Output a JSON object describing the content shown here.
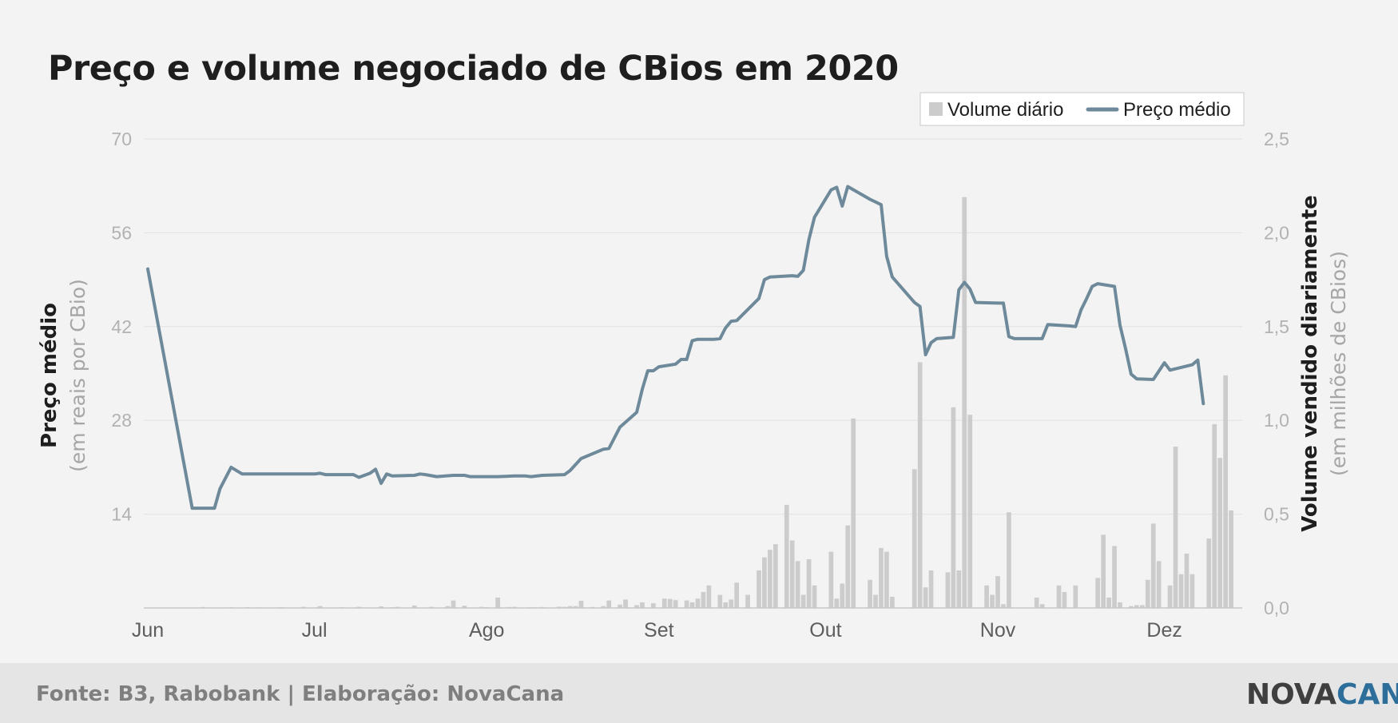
{
  "chart_data": {
    "type": "bar+line",
    "title": "Preço e volume negociado de CBios em 2020",
    "y_left": {
      "label": "Preço médio",
      "sublabel": "(em reais por CBio)",
      "ticks": [
        "70",
        "56",
        "42",
        "28",
        "14"
      ],
      "range": [
        0,
        70
      ]
    },
    "y_right": {
      "label": "Volume vendido diariamente",
      "sublabel": "(em milhões de CBios)",
      "ticks": [
        "2,5",
        "2,0",
        "1,5",
        "1,0",
        "0,5",
        "0,0"
      ],
      "range": [
        0,
        2.5
      ]
    },
    "x_axis": {
      "ticks": [
        "Jun",
        "Jul",
        "Ago",
        "Set",
        "Out",
        "Nov",
        "Dez"
      ],
      "range_days": [
        0,
        197
      ]
    },
    "legend": {
      "placement": "top-right",
      "items": [
        {
          "label": "Volume diário",
          "type": "bar"
        },
        {
          "label": "Preço médio",
          "type": "line"
        }
      ]
    },
    "series": [
      {
        "name": "Volume diário",
        "type": "bar",
        "axis": "right",
        "values": [
          [
            10,
            0.005
          ],
          [
            15,
            0.004
          ],
          [
            18,
            0.004
          ],
          [
            20,
            0.003
          ],
          [
            24,
            0.004
          ],
          [
            28,
            0.006
          ],
          [
            31,
            0.01
          ],
          [
            35,
            0.004
          ],
          [
            38,
            0.006
          ],
          [
            39,
            0.003
          ],
          [
            42,
            0.008
          ],
          [
            44,
            0.004
          ],
          [
            45,
            0.006
          ],
          [
            48,
            0.013
          ],
          [
            51,
            0.006
          ],
          [
            54,
            0.01
          ],
          [
            55,
            0.04
          ],
          [
            57,
            0.012
          ],
          [
            60,
            0.006
          ],
          [
            61,
            0.004
          ],
          [
            63,
            0.055
          ],
          [
            65,
            0.005
          ],
          [
            66,
            0.006
          ],
          [
            69,
            0.004
          ],
          [
            70,
            0.003
          ],
          [
            71,
            0.005
          ],
          [
            74,
            0.007
          ],
          [
            75,
            0.006
          ],
          [
            76,
            0.01
          ],
          [
            77,
            0.01
          ],
          [
            78,
            0.038
          ],
          [
            80,
            0.005
          ],
          [
            82,
            0.01
          ],
          [
            83,
            0.04
          ],
          [
            85,
            0.018
          ],
          [
            86,
            0.045
          ],
          [
            88,
            0.015
          ],
          [
            89,
            0.03
          ],
          [
            91,
            0.025
          ],
          [
            93,
            0.05
          ],
          [
            94,
            0.048
          ],
          [
            95,
            0.042
          ],
          [
            97,
            0.04
          ],
          [
            98,
            0.03
          ],
          [
            99,
            0.05
          ],
          [
            100,
            0.085
          ],
          [
            101,
            0.12
          ],
          [
            103,
            0.07
          ],
          [
            104,
            0.03
          ],
          [
            105,
            0.045
          ],
          [
            106,
            0.135
          ],
          [
            108,
            0.07
          ],
          [
            110,
            0.2
          ],
          [
            111,
            0.27
          ],
          [
            112,
            0.31
          ],
          [
            113,
            0.34
          ],
          [
            115,
            0.55
          ],
          [
            116,
            0.36
          ],
          [
            117,
            0.25
          ],
          [
            118,
            0.07
          ],
          [
            119,
            0.26
          ],
          [
            120,
            0.12
          ],
          [
            123,
            0.3
          ],
          [
            124,
            0.05
          ],
          [
            125,
            0.13
          ],
          [
            126,
            0.44
          ],
          [
            127,
            1.01
          ],
          [
            130,
            0.15
          ],
          [
            131,
            0.07
          ],
          [
            132,
            0.32
          ],
          [
            133,
            0.3
          ],
          [
            134,
            0.06
          ],
          [
            138,
            0.74
          ],
          [
            139,
            1.31
          ],
          [
            140,
            0.11
          ],
          [
            141,
            0.2
          ],
          [
            144,
            0.19
          ],
          [
            145,
            1.07
          ],
          [
            146,
            0.2
          ],
          [
            147,
            2.19
          ],
          [
            148,
            1.03
          ],
          [
            151,
            0.12
          ],
          [
            152,
            0.07
          ],
          [
            153,
            0.17
          ],
          [
            154,
            0.02
          ],
          [
            155,
            0.51
          ],
          [
            160,
            0.055
          ],
          [
            161,
            0.02
          ],
          [
            164,
            0.12
          ],
          [
            165,
            0.085
          ],
          [
            167,
            0.12
          ],
          [
            171,
            0.16
          ],
          [
            172,
            0.39
          ],
          [
            173,
            0.055
          ],
          [
            174,
            0.33
          ],
          [
            175,
            0.03
          ],
          [
            177,
            0.01
          ],
          [
            178,
            0.015
          ],
          [
            179,
            0.015
          ],
          [
            180,
            0.15
          ],
          [
            181,
            0.45
          ],
          [
            182,
            0.25
          ],
          [
            184,
            0.12
          ],
          [
            185,
            0.86
          ],
          [
            186,
            0.18
          ],
          [
            187,
            0.29
          ],
          [
            188,
            0.18
          ],
          [
            191,
            0.37
          ],
          [
            192,
            0.98
          ],
          [
            193,
            0.8
          ],
          [
            194,
            1.24
          ],
          [
            195,
            0.52
          ]
        ]
      },
      {
        "name": "Preço médio",
        "type": "line",
        "axis": "left",
        "points": [
          [
            0,
            50.6
          ],
          [
            8,
            14.9
          ],
          [
            12,
            14.9
          ],
          [
            13,
            17.8
          ],
          [
            15,
            21.0
          ],
          [
            17,
            20.0
          ],
          [
            30,
            20.0
          ],
          [
            31,
            20.1
          ],
          [
            32,
            19.9
          ],
          [
            37,
            19.9
          ],
          [
            38,
            19.5
          ],
          [
            40,
            20.1
          ],
          [
            41,
            20.7
          ],
          [
            42,
            18.6
          ],
          [
            43,
            20.0
          ],
          [
            44,
            19.7
          ],
          [
            48,
            19.8
          ],
          [
            49,
            20.0
          ],
          [
            50,
            19.9
          ],
          [
            52,
            19.6
          ],
          [
            55,
            19.8
          ],
          [
            57,
            19.8
          ],
          [
            58,
            19.6
          ],
          [
            63,
            19.6
          ],
          [
            66,
            19.7
          ],
          [
            68,
            19.7
          ],
          [
            69,
            19.6
          ],
          [
            71,
            19.8
          ],
          [
            75,
            19.9
          ],
          [
            76,
            20.5
          ],
          [
            78,
            22.3
          ],
          [
            82,
            23.7
          ],
          [
            83,
            23.8
          ],
          [
            85,
            27.0
          ],
          [
            88,
            29.2
          ],
          [
            89,
            32.6
          ],
          [
            90,
            35.4
          ],
          [
            91,
            35.4
          ],
          [
            92,
            36.0
          ],
          [
            95,
            36.4
          ],
          [
            96,
            37.1
          ],
          [
            97,
            37.1
          ],
          [
            98,
            39.9
          ],
          [
            99,
            40.1
          ],
          [
            102,
            40.1
          ],
          [
            103,
            40.2
          ],
          [
            104,
            41.8
          ],
          [
            105,
            42.8
          ],
          [
            106,
            42.9
          ],
          [
            110,
            46.2
          ],
          [
            111,
            49.0
          ],
          [
            112,
            49.4
          ],
          [
            116,
            49.6
          ],
          [
            117,
            49.5
          ],
          [
            118,
            50.4
          ],
          [
            119,
            55.0
          ],
          [
            120,
            58.3
          ],
          [
            123,
            62.4
          ],
          [
            124,
            62.8
          ],
          [
            125,
            60.0
          ],
          [
            126,
            62.9
          ],
          [
            130,
            61.0
          ],
          [
            131,
            60.6
          ],
          [
            132,
            60.2
          ],
          [
            133,
            52.5
          ],
          [
            134,
            49.4
          ],
          [
            138,
            45.6
          ],
          [
            139,
            45.0
          ],
          [
            140,
            37.8
          ],
          [
            141,
            39.6
          ],
          [
            142,
            40.2
          ],
          [
            145,
            40.4
          ],
          [
            146,
            47.5
          ],
          [
            147,
            48.6
          ],
          [
            148,
            47.6
          ],
          [
            149,
            45.6
          ],
          [
            153,
            45.5
          ],
          [
            154,
            45.5
          ],
          [
            155,
            40.5
          ],
          [
            156,
            40.2
          ],
          [
            161,
            40.2
          ],
          [
            162,
            42.3
          ],
          [
            166,
            42.1
          ],
          [
            167,
            42.0
          ],
          [
            168,
            44.5
          ],
          [
            169,
            46.2
          ],
          [
            170,
            48.0
          ],
          [
            171,
            48.4
          ],
          [
            174,
            48.0
          ],
          [
            175,
            42.2
          ],
          [
            176,
            38.7
          ],
          [
            177,
            34.9
          ],
          [
            178,
            34.2
          ],
          [
            181,
            34.1
          ],
          [
            183,
            36.6
          ],
          [
            184,
            35.5
          ],
          [
            188,
            36.3
          ],
          [
            189,
            37.0
          ],
          [
            190,
            30.5
          ]
        ]
      }
    ],
    "grid": "horizontal"
  },
  "footer": {
    "source": "Fonte: B3, Rabobank | Elaboração: NovaCana",
    "logo_part1": "NOVA",
    "logo_part2": "CANA"
  },
  "colors": {
    "bar": "#cccccc",
    "line": "#6e8a9a",
    "grid": "#e2e2e2",
    "background": "#f3f3f3",
    "footer_background": "#e5e5e5",
    "logo_accent": "#2d6e9a"
  }
}
